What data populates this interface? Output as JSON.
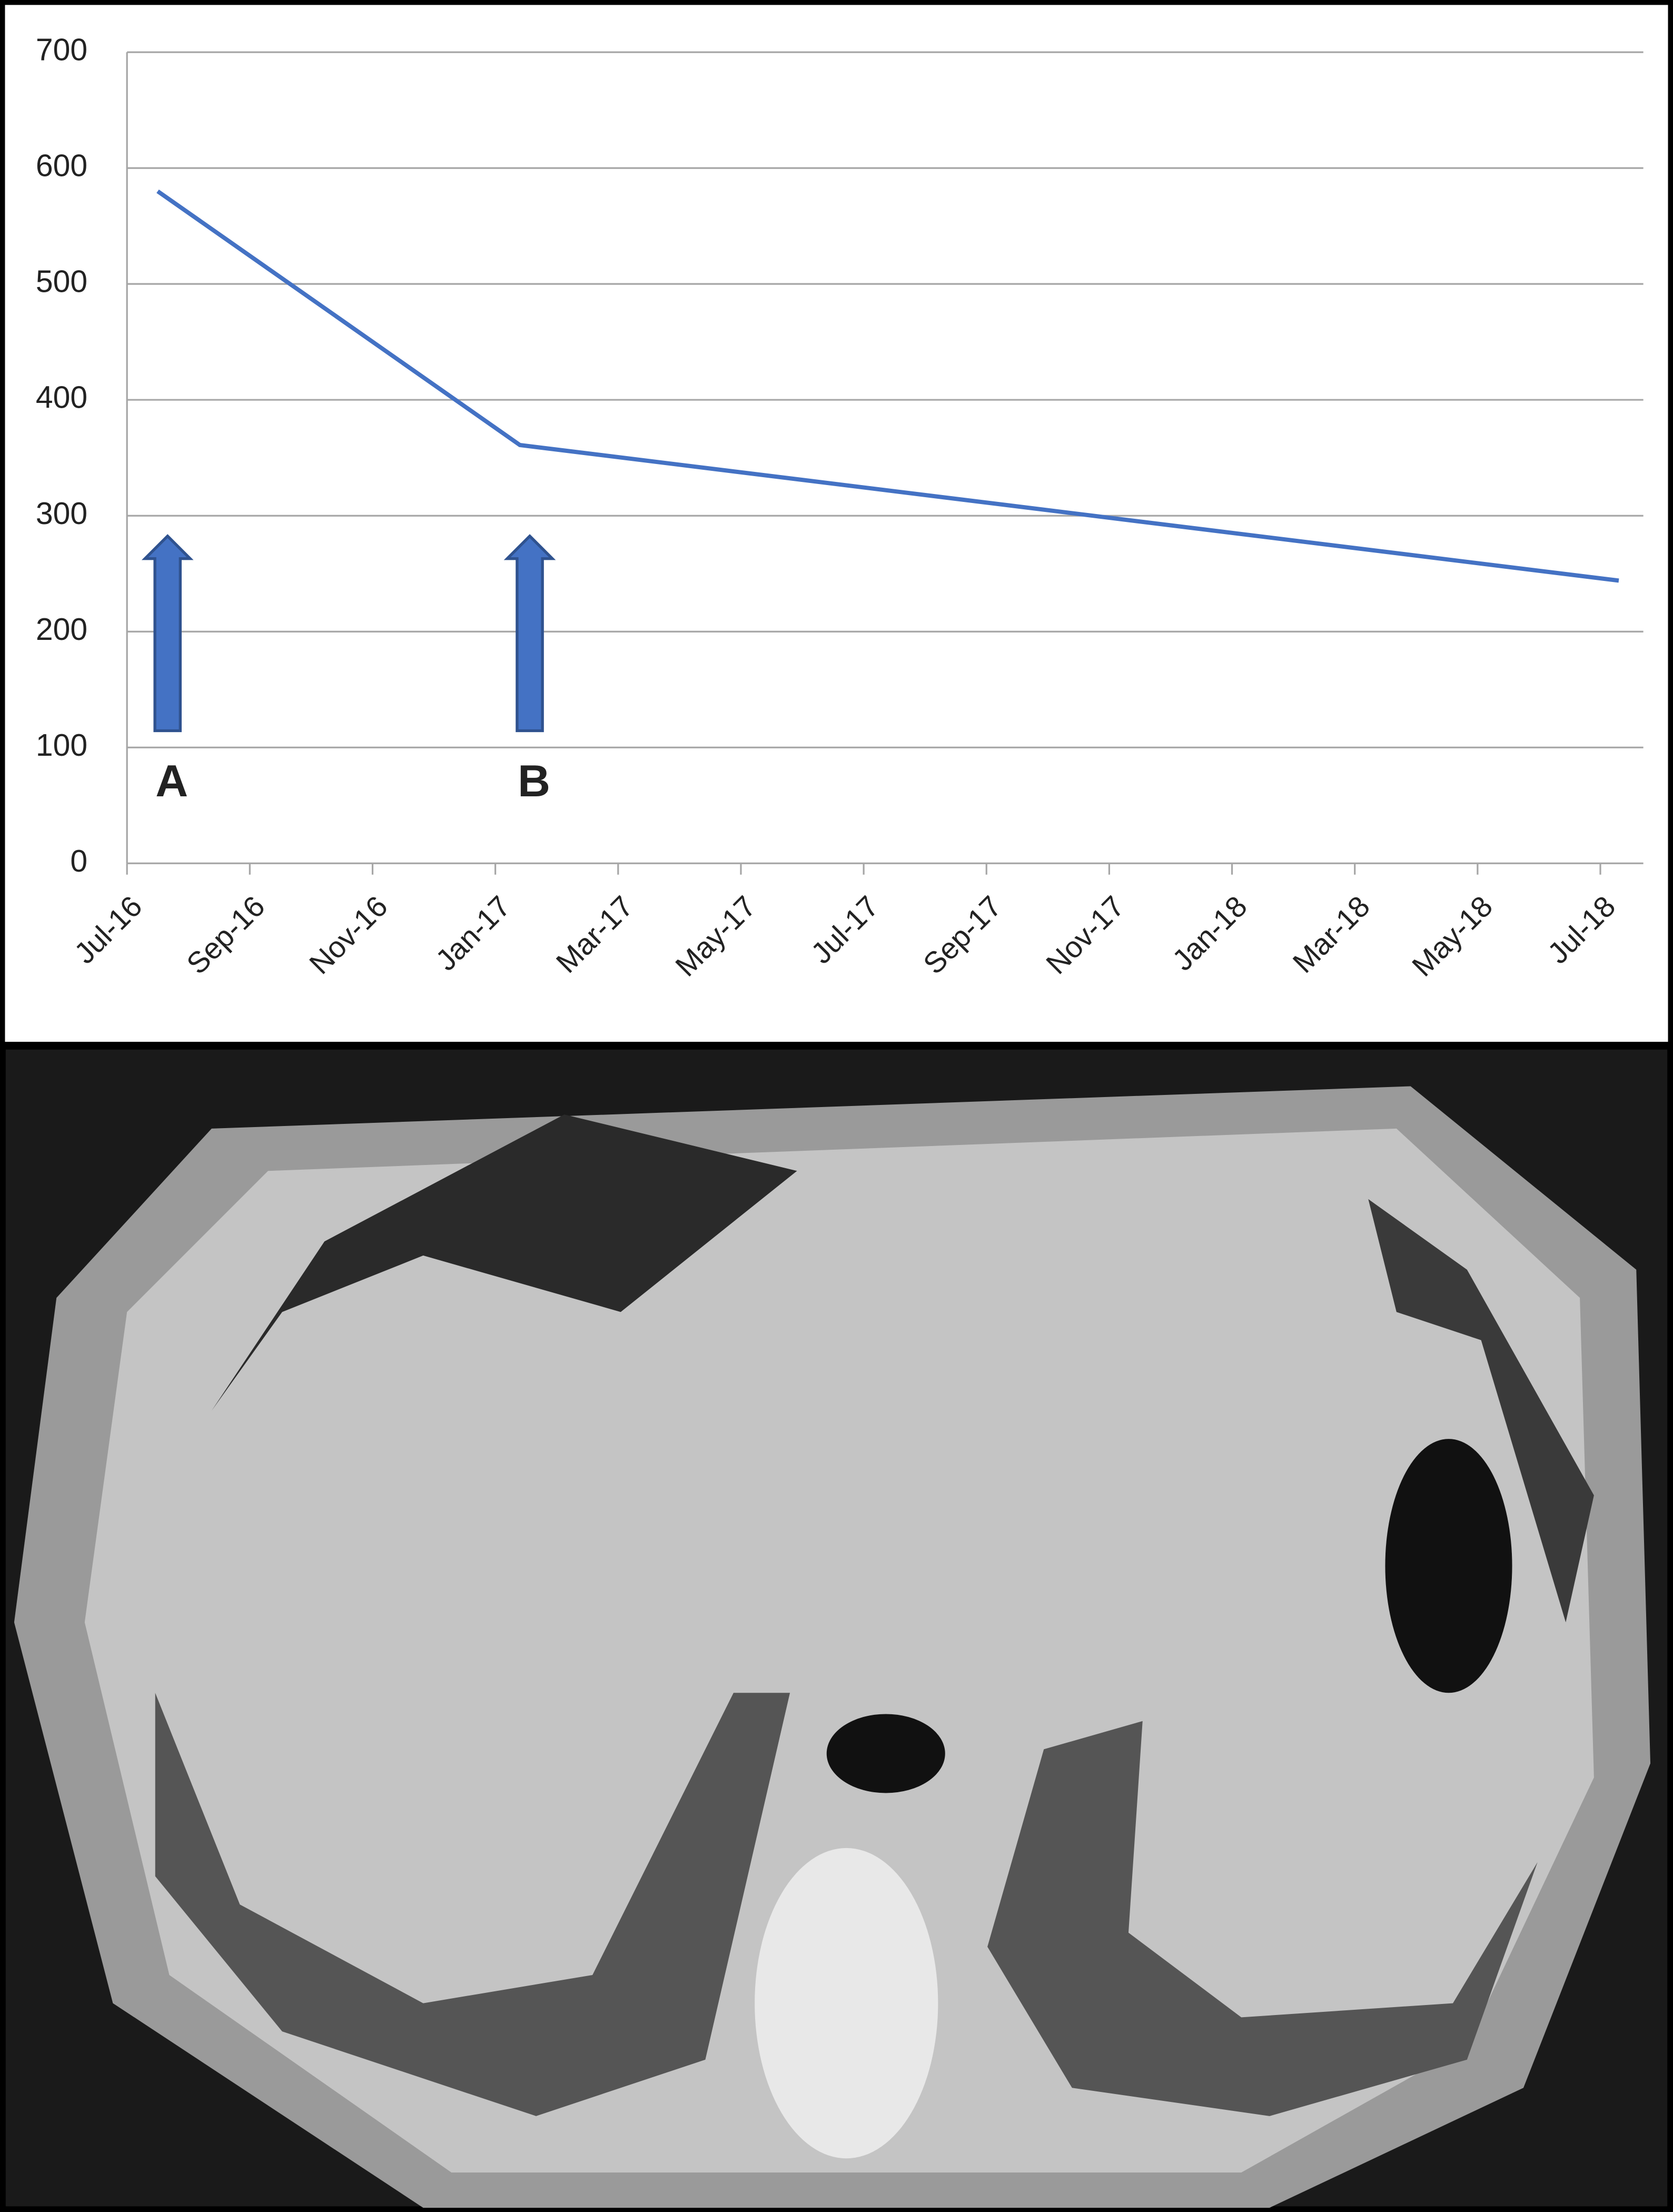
{
  "chart_data": {
    "type": "line",
    "x": [
      0.5,
      6.4,
      24.3
    ],
    "xlim": [
      0,
      24.7
    ],
    "xticks": [
      {
        "value": 0,
        "label": "Jul-16"
      },
      {
        "value": 2,
        "label": "Sep-16"
      },
      {
        "value": 4,
        "label": "Nov-16"
      },
      {
        "value": 6,
        "label": "Jan-17"
      },
      {
        "value": 8,
        "label": "Mar-17"
      },
      {
        "value": 10,
        "label": "May-17"
      },
      {
        "value": 12,
        "label": "Jul-17"
      },
      {
        "value": 14,
        "label": "Sep-17"
      },
      {
        "value": 16,
        "label": "Nov-17"
      },
      {
        "value": 18,
        "label": "Jan-18"
      },
      {
        "value": 20,
        "label": "Mar-18"
      },
      {
        "value": 22,
        "label": "May-18"
      },
      {
        "value": 24,
        "label": "Jul-18"
      }
    ],
    "series": [
      {
        "color": "#4472c4",
        "values": [
          580,
          361,
          244
        ]
      }
    ],
    "ylim": [
      0,
      700
    ],
    "yticks": [
      0,
      100,
      200,
      300,
      400,
      500,
      600,
      700
    ],
    "grid": true,
    "annotations": [
      "A",
      "B"
    ]
  }
}
